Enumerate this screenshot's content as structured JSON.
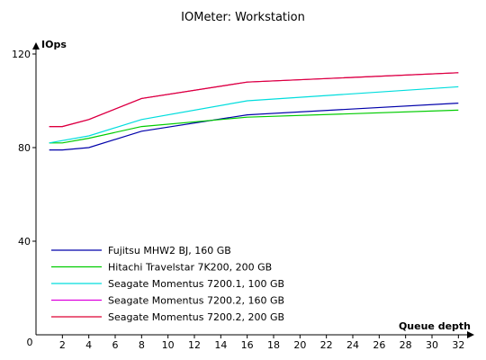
{
  "chart_data": {
    "type": "line",
    "title": "IOMeter: Workstation",
    "xlabel": "Queue depth",
    "ylabel": "IOps",
    "xlim": [
      0,
      33
    ],
    "ylim": [
      0,
      120
    ],
    "x_ticks": [
      2,
      4,
      6,
      8,
      10,
      12,
      14,
      16,
      18,
      20,
      22,
      24,
      26,
      28,
      30,
      32
    ],
    "x_origin_label": "0",
    "y_ticks": [
      40,
      80,
      120
    ],
    "grid": false,
    "legend_position": "bottom-left",
    "x": [
      1,
      2,
      4,
      8,
      16,
      32
    ],
    "series": [
      {
        "name": "Fujitsu MHW2 BJ, 160 GB",
        "color": "#0000aa",
        "values": [
          79,
          79,
          80,
          87,
          94,
          99
        ]
      },
      {
        "name": "Hitachi Travelstar 7K200, 200 GB",
        "color": "#00cc00",
        "values": [
          82,
          82,
          84,
          89,
          93,
          96
        ]
      },
      {
        "name": "Seagate Momentus 7200.1, 100 GB",
        "color": "#00dddd",
        "values": [
          82,
          83,
          85,
          92,
          100,
          106
        ]
      },
      {
        "name": "Seagate Momentus 7200.2, 160 GB",
        "color": "#dd00dd",
        "values": [
          89,
          89,
          92,
          101,
          108,
          112
        ]
      },
      {
        "name": "Seagate Momentus 7200.2, 200 GB",
        "color": "#dd0033",
        "values": [
          89,
          89,
          92,
          101,
          108,
          112
        ]
      }
    ]
  }
}
